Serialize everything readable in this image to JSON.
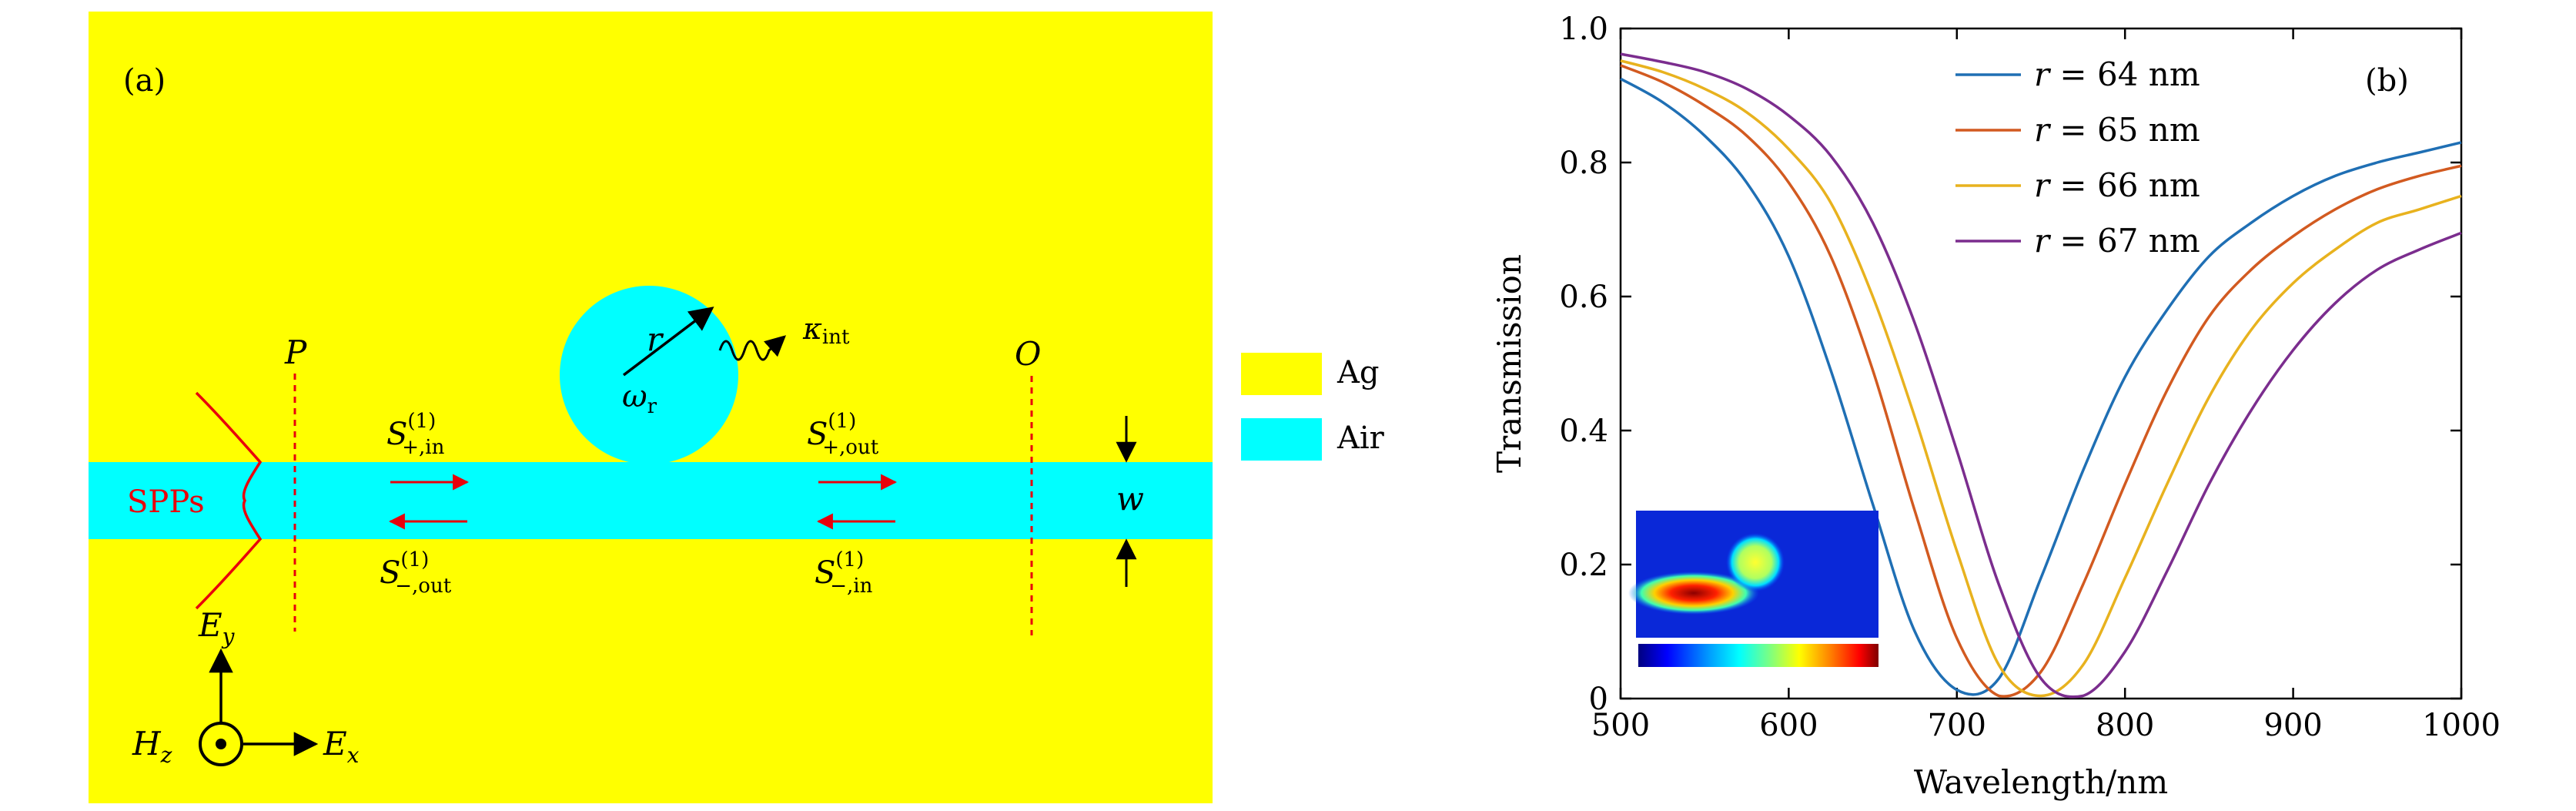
{
  "panel_a": {
    "label": "(a)",
    "colors": {
      "ag": "#FFFF00",
      "air": "#00FFFF",
      "red": "#E8000B",
      "black": "#000000"
    },
    "legend": [
      {
        "name": "Ag",
        "color": "#FFFF00"
      },
      {
        "name": "Air",
        "color": "#00FFFF"
      }
    ],
    "labels": {
      "P": "P",
      "O": "O",
      "r": "r",
      "omega_r": "ω",
      "omega_sub": "r",
      "kappa": "κ",
      "kappa_sub": "int",
      "spps": "SPPs",
      "w": "w",
      "ey": "E",
      "ey_sub": "y",
      "ex": "E",
      "ex_sub": "x",
      "hz": "H",
      "hz_sub": "z",
      "s_plus_in": {
        "main": "S",
        "sup": "(1)",
        "sub": "+,in"
      },
      "s_plus_out": {
        "main": "S",
        "sup": "(1)",
        "sub": "+,out"
      },
      "s_minus_out": {
        "main": "S",
        "sup": "(1)",
        "sub": "−,out"
      },
      "s_minus_in": {
        "main": "S",
        "sup": "(1)",
        "sub": "−,in"
      }
    }
  },
  "panel_b": {
    "label": "(b)"
  },
  "chart_data": {
    "type": "line",
    "title": "",
    "xlabel": "Wavelength/nm",
    "ylabel": "Transmission",
    "xlim": [
      500,
      1000
    ],
    "ylim": [
      0,
      1.0
    ],
    "xticks": [
      500,
      600,
      700,
      800,
      900,
      1000
    ],
    "xtick_labels": [
      "500",
      "600",
      "700",
      "800",
      "900",
      "1000"
    ],
    "yticks": [
      0,
      0.2,
      0.4,
      0.6,
      0.8,
      1.0
    ],
    "ytick_labels": [
      "0",
      "0.2",
      "0.4",
      "0.6",
      "0.8",
      "1.0"
    ],
    "legend_position": "top-right",
    "grid": false,
    "x": [
      500,
      525,
      550,
      575,
      600,
      625,
      650,
      675,
      700,
      725,
      750,
      775,
      800,
      825,
      850,
      875,
      900,
      925,
      950,
      975,
      1000
    ],
    "series": [
      {
        "name": "r = 64 nm",
        "var": "r",
        "value": "64 nm",
        "color": "#1f6fb4",
        "values": [
          0.925,
          0.89,
          0.84,
          0.77,
          0.66,
          0.49,
          0.29,
          0.1,
          0.013,
          0.03,
          0.18,
          0.34,
          0.48,
          0.58,
          0.66,
          0.71,
          0.75,
          0.78,
          0.8,
          0.815,
          0.83
        ]
      },
      {
        "name": "r = 65 nm",
        "var": "r",
        "value": "65 nm",
        "color": "#d25a20",
        "values": [
          0.945,
          0.92,
          0.885,
          0.84,
          0.77,
          0.66,
          0.49,
          0.28,
          0.09,
          0.004,
          0.04,
          0.17,
          0.32,
          0.46,
          0.57,
          0.64,
          0.69,
          0.73,
          0.76,
          0.78,
          0.795
        ]
      },
      {
        "name": "r = 66 nm",
        "var": "r",
        "value": "66 nm",
        "color": "#e8b21e",
        "values": [
          0.952,
          0.935,
          0.91,
          0.875,
          0.82,
          0.74,
          0.6,
          0.42,
          0.22,
          0.05,
          0.004,
          0.05,
          0.18,
          0.32,
          0.45,
          0.55,
          0.62,
          0.67,
          0.71,
          0.73,
          0.75
        ]
      },
      {
        "name": "r = 67 nm",
        "var": "r",
        "value": "67 nm",
        "color": "#7b2d8e",
        "values": [
          0.962,
          0.95,
          0.935,
          0.91,
          0.87,
          0.81,
          0.71,
          0.56,
          0.37,
          0.17,
          0.03,
          0.004,
          0.07,
          0.19,
          0.32,
          0.43,
          0.52,
          0.59,
          0.64,
          0.67,
          0.695
        ]
      }
    ],
    "inset_colormap": [
      "#00007f",
      "#0000ff",
      "#00a0ff",
      "#00ffff",
      "#7fff7f",
      "#ffff00",
      "#ff8000",
      "#ff0000",
      "#7f0000"
    ]
  }
}
